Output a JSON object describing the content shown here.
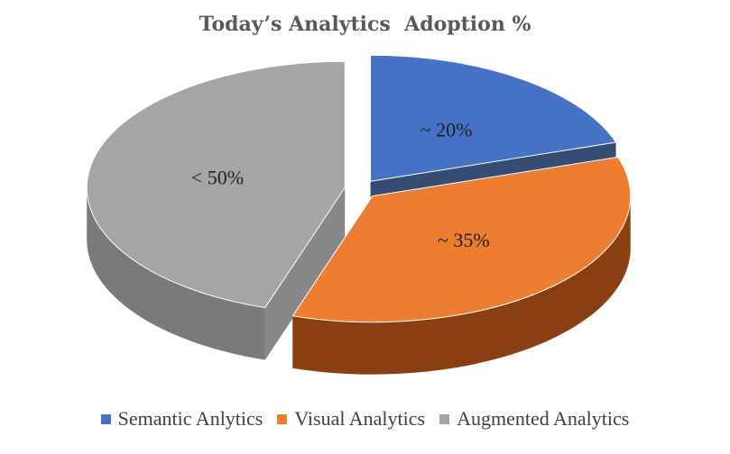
{
  "chart_data": {
    "type": "pie",
    "title": "Today’s Analytics  Adoption %",
    "slices": [
      {
        "name": "Semantic Anlytics",
        "value": 20,
        "label": "~ 20%",
        "color": "#4472C4",
        "side_color": "#1F3864"
      },
      {
        "name": "Visual Analytics",
        "value": 35,
        "label": "~ 35%",
        "color": "#ED7D31",
        "side_color": "#8A3F12"
      },
      {
        "name": "Augmented Analytics",
        "value": 45,
        "label": "< 50%",
        "color": "#A5A5A5",
        "side_color": "#7A7A7A"
      }
    ],
    "legend_position": "bottom",
    "style": "3d-exploded"
  }
}
